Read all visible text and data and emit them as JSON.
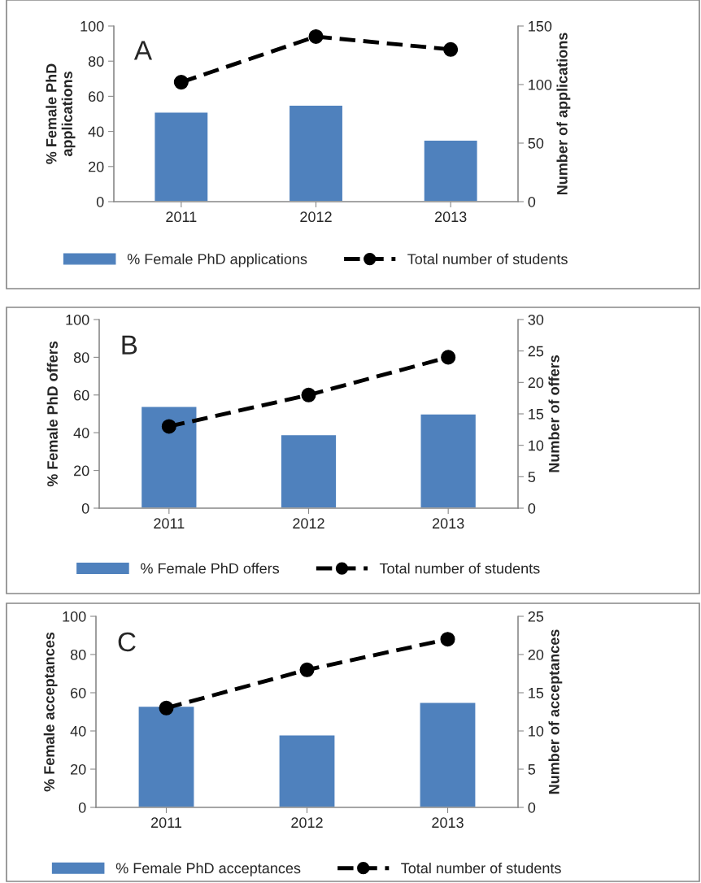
{
  "chart_data": [
    {
      "type": "bar",
      "categories": [
        "2011",
        "2012",
        "2013"
      ],
      "ylabel": "% Female PhD\napplications",
      "y2label": "Number of applications",
      "ylim": [
        0,
        100
      ],
      "yticks": [
        0,
        20,
        40,
        60,
        80,
        100
      ],
      "y2lim": [
        0,
        150
      ],
      "y2ticks": [
        0,
        50,
        100,
        150
      ],
      "legend": "bottom",
      "grid": false,
      "annotations": [
        "A"
      ],
      "series": [
        {
          "name": "% Female PhD applications",
          "color": "#4f81bd",
          "values": [
            51,
            55,
            35
          ]
        },
        {
          "name": "Total number of students",
          "type": "line",
          "axis": "y2",
          "color": "#000000",
          "marker": "circle",
          "line_style": "dashed",
          "values": [
            102,
            141,
            130
          ]
        }
      ]
    },
    {
      "type": "bar",
      "categories": [
        "2011",
        "2012",
        "2013"
      ],
      "ylabel": "% Female PhD offers",
      "y2label": "Number of offers",
      "ylim": [
        0,
        100
      ],
      "yticks": [
        0,
        20,
        40,
        60,
        80,
        100
      ],
      "y2lim": [
        0,
        30
      ],
      "y2ticks": [
        0,
        5,
        10,
        15,
        20,
        25,
        30
      ],
      "legend": "bottom",
      "grid": false,
      "annotations": [
        "B"
      ],
      "series": [
        {
          "name": "% Female PhD offers",
          "color": "#4f81bd",
          "values": [
            54,
            39,
            50
          ]
        },
        {
          "name": "Total number of students",
          "type": "line",
          "axis": "y2",
          "color": "#000000",
          "marker": "circle",
          "line_style": "dashed",
          "values": [
            13,
            18,
            24
          ]
        }
      ]
    },
    {
      "type": "bar",
      "categories": [
        "2011",
        "2012",
        "2013"
      ],
      "ylabel": "% Female acceptances",
      "y2label": "Number of acceptances",
      "ylim": [
        0,
        100
      ],
      "yticks": [
        0,
        20,
        40,
        60,
        80,
        100
      ],
      "y2lim": [
        0,
        25
      ],
      "y2ticks": [
        0,
        5,
        10,
        15,
        20,
        25
      ],
      "legend": "bottom",
      "grid": false,
      "annotations": [
        "C"
      ],
      "series": [
        {
          "name": "% Female PhD acceptances",
          "color": "#4f81bd",
          "values": [
            53,
            38,
            55
          ]
        },
        {
          "name": "Total number of students",
          "type": "line",
          "axis": "y2",
          "color": "#000000",
          "marker": "circle",
          "line_style": "dashed",
          "values": [
            13,
            18,
            22
          ]
        }
      ]
    }
  ]
}
